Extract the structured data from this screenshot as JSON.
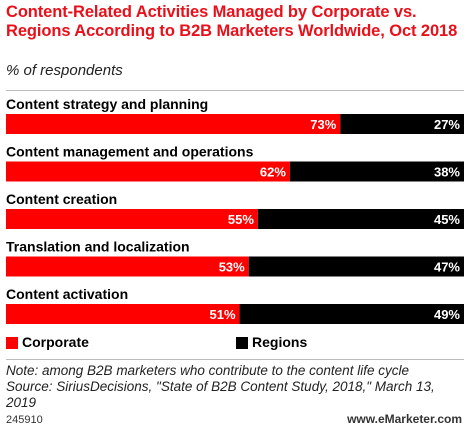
{
  "header": {
    "title": "Content-Related Activities Managed by Corporate vs. Regions According to B2B Marketers Worldwide, Oct 2018",
    "subtitle": "% of respondents"
  },
  "colors": {
    "corporate": "#ff0000",
    "regions": "#000000",
    "title": "#e8111b"
  },
  "chart_data": {
    "type": "bar",
    "orientation": "horizontal",
    "stacked": true,
    "categories": [
      "Content strategy and planning",
      "Content management and operations",
      "Content creation",
      "Translation and localization",
      "Content activation"
    ],
    "series": [
      {
        "name": "Corporate",
        "values": [
          73,
          62,
          55,
          53,
          51
        ],
        "labels": [
          "73%",
          "62%",
          "55%",
          "53%",
          "51%"
        ]
      },
      {
        "name": "Regions",
        "values": [
          27,
          38,
          45,
          47,
          49
        ],
        "labels": [
          "27%",
          "38%",
          "45%",
          "47%",
          "49%"
        ]
      }
    ],
    "xlim": [
      0,
      100
    ],
    "legend": "bottom-left",
    "grid": false
  },
  "legend": {
    "corporate": "Corporate",
    "regions": "Regions"
  },
  "footer": {
    "note": "Note: among B2B marketers who contribute to the content life cycle",
    "source": "Source: SiriusDecisions, \"State of B2B Content Study, 2018,\" March 13, 2019",
    "id": "245910",
    "brand": "www.eMarketer.com"
  }
}
